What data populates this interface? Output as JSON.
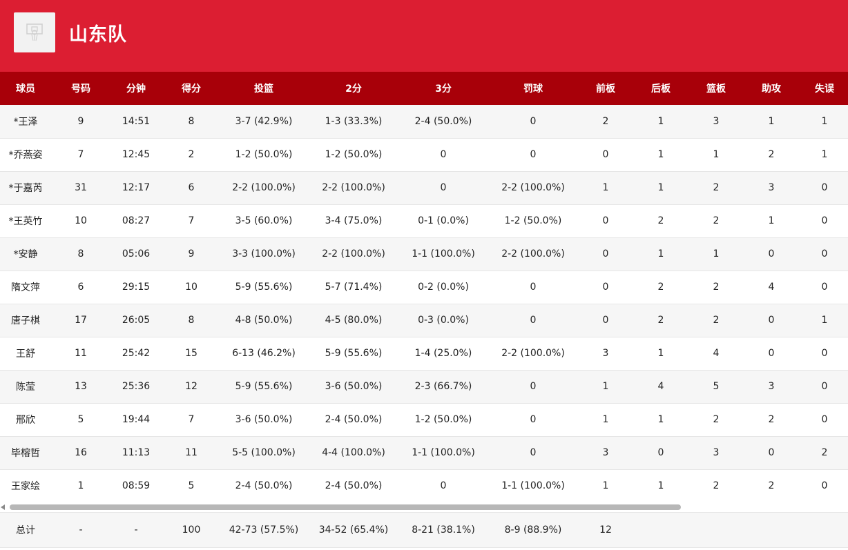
{
  "team": {
    "name": "山东队",
    "logo_icon": "team-logo-icon",
    "header_color": "#dc1e32",
    "table_header_color": "#a80009"
  },
  "columns": [
    "球员",
    "号码",
    "分钟",
    "得分",
    "投篮",
    "2分",
    "3分",
    "罚球",
    "前板",
    "后板",
    "篮板",
    "助攻",
    "失误"
  ],
  "players": [
    [
      "*王泽",
      "9",
      "14:51",
      "8",
      "3-7 (42.9%)",
      "1-3 (33.3%)",
      "2-4 (50.0%)",
      "0",
      "2",
      "1",
      "3",
      "1",
      "1"
    ],
    [
      "*乔燕姿",
      "7",
      "12:45",
      "2",
      "1-2 (50.0%)",
      "1-2 (50.0%)",
      "0",
      "0",
      "0",
      "1",
      "1",
      "2",
      "1"
    ],
    [
      "*于嘉芮",
      "31",
      "12:17",
      "6",
      "2-2 (100.0%)",
      "2-2 (100.0%)",
      "0",
      "2-2 (100.0%)",
      "1",
      "1",
      "2",
      "3",
      "0"
    ],
    [
      "*王英竹",
      "10",
      "08:27",
      "7",
      "3-5 (60.0%)",
      "3-4 (75.0%)",
      "0-1 (0.0%)",
      "1-2 (50.0%)",
      "0",
      "2",
      "2",
      "1",
      "0"
    ],
    [
      "*安静",
      "8",
      "05:06",
      "9",
      "3-3 (100.0%)",
      "2-2 (100.0%)",
      "1-1 (100.0%)",
      "2-2 (100.0%)",
      "0",
      "1",
      "1",
      "0",
      "0"
    ],
    [
      "隋文萍",
      "6",
      "29:15",
      "10",
      "5-9 (55.6%)",
      "5-7 (71.4%)",
      "0-2 (0.0%)",
      "0",
      "0",
      "2",
      "2",
      "4",
      "0"
    ],
    [
      "唐子棋",
      "17",
      "26:05",
      "8",
      "4-8 (50.0%)",
      "4-5 (80.0%)",
      "0-3 (0.0%)",
      "0",
      "0",
      "2",
      "2",
      "0",
      "1"
    ],
    [
      "王舒",
      "11",
      "25:42",
      "15",
      "6-13 (46.2%)",
      "5-9 (55.6%)",
      "1-4 (25.0%)",
      "2-2 (100.0%)",
      "3",
      "1",
      "4",
      "0",
      "0"
    ],
    [
      "陈莹",
      "13",
      "25:36",
      "12",
      "5-9 (55.6%)",
      "3-6 (50.0%)",
      "2-3 (66.7%)",
      "0",
      "1",
      "4",
      "5",
      "3",
      "0"
    ],
    [
      "邢欣",
      "5",
      "19:44",
      "7",
      "3-6 (50.0%)",
      "2-4 (50.0%)",
      "1-2 (50.0%)",
      "0",
      "1",
      "1",
      "2",
      "2",
      "0"
    ],
    [
      "毕榕哲",
      "16",
      "11:13",
      "11",
      "5-5 (100.0%)",
      "4-4 (100.0%)",
      "1-1 (100.0%)",
      "0",
      "3",
      "0",
      "3",
      "0",
      "2"
    ],
    [
      "王家绘",
      "1",
      "08:59",
      "5",
      "2-4 (50.0%)",
      "2-4 (50.0%)",
      "0",
      "1-1 (100.0%)",
      "1",
      "1",
      "2",
      "2",
      "0"
    ]
  ],
  "totals": [
    "总计",
    "-",
    "-",
    "100",
    "42-73 (57.5%)",
    "34-52 (65.4%)",
    "8-21 (38.1%)",
    "8-9 (88.9%)",
    "12",
    "",
    "",
    "",
    ""
  ],
  "scrollbar": {
    "left_arrow_icon": "chevron-left-icon"
  }
}
